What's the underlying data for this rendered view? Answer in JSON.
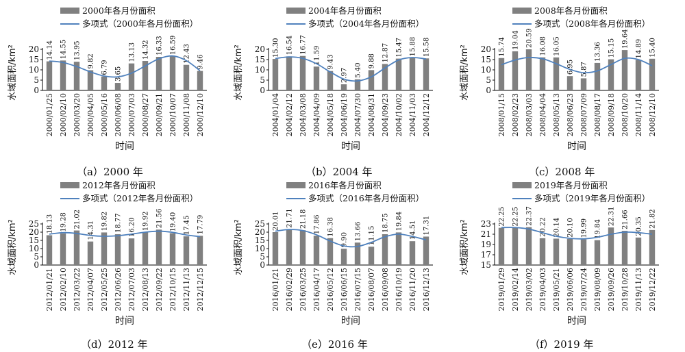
{
  "colors": {
    "bar": "#808080",
    "trend": "#4f81bd",
    "axis": "#000000",
    "text": "#111111"
  },
  "chart_data": [
    {
      "type": "bar",
      "caption": "（a）2000 年",
      "bar_legend": "2000年各月份面积",
      "trend_legend": "多项式（2000年各月份面积）",
      "xlabel": "时间",
      "ylabel": "水域面积/km²",
      "ylim": [
        0,
        20
      ],
      "yticks": [
        "0",
        "5",
        "10",
        "15",
        "20"
      ],
      "yticks_values": [
        0,
        5,
        10,
        15,
        20
      ],
      "categories": [
        "2000/01/25",
        "2000/02/10",
        "2000/03/20",
        "2000/04/05",
        "2000/05/16",
        "2000/06/08",
        "2000/07/03",
        "2000/08/27",
        "2000/09/21",
        "2000/10/07",
        "2000/11/08",
        "2000/12/10"
      ],
      "values": [
        14.14,
        14.55,
        13.95,
        9.82,
        6.79,
        3.65,
        13.13,
        14.32,
        16.33,
        16.59,
        12.43,
        9.46
      ],
      "value_labels": [
        "14.14",
        "14.55",
        "13.95",
        "9.82",
        "6.79",
        "3.65",
        "13.13",
        "14.32",
        "16.33",
        "16.59",
        "12.43",
        "9.46"
      ],
      "trend": [
        14.3,
        13.6,
        11.6,
        9.0,
        7.0,
        6.6,
        8.4,
        11.9,
        15.4,
        16.8,
        14.5,
        9.6
      ]
    },
    {
      "type": "bar",
      "caption": "（b）2004 年",
      "bar_legend": "2004年各月份面积",
      "trend_legend": "多项式（2004年各月份面积）",
      "xlabel": "时间",
      "ylabel": "水域面积/km²",
      "ylim": [
        0,
        20
      ],
      "yticks": [
        "0",
        "5",
        "10",
        "15",
        "20"
      ],
      "yticks_values": [
        0,
        5,
        10,
        15,
        20
      ],
      "categories": [
        "2004/01/04",
        "2004/02/12",
        "2004/03/08",
        "2004/04/09",
        "2004/05/18",
        "2004/06/19",
        "2004/07/30",
        "2004/08/31",
        "2004/09/23",
        "2004/10/02",
        "2004/11/03",
        "2004/12/12"
      ],
      "values": [
        15.3,
        16.54,
        16.77,
        11.59,
        9.43,
        2.97,
        5.4,
        9.88,
        12.87,
        15.47,
        15.88,
        15.58
      ],
      "value_labels": [
        "15.30",
        "16.54",
        "16.77",
        "11.59",
        "9.43",
        "2.97",
        "5.40",
        "9.88",
        "12.87",
        "15.47",
        "15.88",
        "15.58"
      ],
      "trend": [
        15.5,
        16.3,
        15.6,
        13.0,
        9.0,
        5.5,
        4.6,
        6.6,
        10.9,
        14.8,
        16.0,
        15.3
      ]
    },
    {
      "type": "bar",
      "caption": "（c）2008 年",
      "bar_legend": "2008年各月份面积",
      "trend_legend": "多项式（2008年各月份面积）",
      "xlabel": "时间",
      "ylabel": "水域面积/km²",
      "ylim": [
        0,
        20
      ],
      "yticks": [
        "0",
        "5",
        "10",
        "15",
        "20"
      ],
      "yticks_values": [
        0,
        5,
        10,
        15,
        20
      ],
      "categories": [
        "2008/01/15",
        "2008/02/23",
        "2008/03/03",
        "2008/04/04",
        "2008/05/13",
        "2008/06/23",
        "2008/07/09",
        "2008/08/17",
        "2008/09/18",
        "2008/10/20",
        "2008/11/14",
        "2008/12/10"
      ],
      "values": [
        15.74,
        19.04,
        20.59,
        16.08,
        16.05,
        6.95,
        5.87,
        13.36,
        15.15,
        19.64,
        14.89,
        15.4
      ],
      "value_labels": [
        "15.74",
        "19.04",
        "20.59",
        "16.08",
        "16.05",
        "6.95",
        "5.87",
        "13.36",
        "15.15",
        "19.64",
        "14.89",
        "15.40"
      ],
      "trend": [
        12.5,
        14.8,
        16.0,
        15.4,
        13.0,
        10.2,
        8.6,
        9.5,
        12.6,
        15.6,
        15.0,
        12.0
      ]
    },
    {
      "type": "bar",
      "caption": "（d）2012 年",
      "bar_legend": "2012年各月份面积",
      "trend_legend": "多项式（2012年各月份面积）",
      "xlabel": "时间",
      "ylabel": "水域面积/km²",
      "ylim": [
        0,
        25
      ],
      "yticks": [
        "0",
        "5",
        "10",
        "15",
        "20",
        "25"
      ],
      "yticks_values": [
        0,
        5,
        10,
        15,
        20,
        25
      ],
      "categories": [
        "2012/01/21",
        "2012/02/10",
        "2012/03/22",
        "2012/04/07",
        "2012/05/25",
        "2012/06/26",
        "2012/07/03",
        "2012/08/13",
        "2012/09/22",
        "2012/10/15",
        "2012/11/13",
        "2012/12/15"
      ],
      "values": [
        18.13,
        19.28,
        21.02,
        14.31,
        19.82,
        18.77,
        16.2,
        19.92,
        21.56,
        19.4,
        17.45,
        17.79
      ],
      "value_labels": [
        "18.13",
        "19.28",
        "21.02",
        "14.31",
        "19.82",
        "18.77",
        "16.20",
        "19.92",
        "21.56",
        "19.40",
        "17.45",
        "17.79"
      ],
      "trend": [
        18.8,
        19.7,
        19.2,
        18.0,
        17.5,
        17.8,
        18.8,
        20.0,
        20.6,
        19.9,
        18.3,
        17.3
      ]
    },
    {
      "type": "bar",
      "caption": "（e）2016 年",
      "bar_legend": "2016年各月份面积",
      "trend_legend": "多项式（2016年各月份面积）",
      "xlabel": "时间",
      "ylabel": "水域面积/km²",
      "ylim": [
        0,
        25
      ],
      "yticks": [
        "0",
        "5",
        "10",
        "15",
        "20",
        "25"
      ],
      "yticks_values": [
        0,
        5,
        10,
        15,
        20,
        25
      ],
      "categories": [
        "2016/01/21",
        "2016/02/29",
        "2016/03/25",
        "2016/04/17",
        "2016/05/12",
        "2016/06/15",
        "2016/07/15",
        "2016/08/07",
        "2016/09/08",
        "2016/10/19",
        "2016/11/20",
        "2016/12/13"
      ],
      "values": [
        20.01,
        21.71,
        21.18,
        17.86,
        16.38,
        9.9,
        13.66,
        11.15,
        18.75,
        19.84,
        14.51,
        17.31
      ],
      "value_labels": [
        "20.01",
        "21.71",
        "21.18",
        "17.86",
        "16.38",
        "9.90",
        "13.66",
        "11.15",
        "18.75",
        "19.84",
        "14.51",
        "17.31"
      ],
      "trend": [
        20.6,
        21.6,
        21.0,
        18.4,
        14.6,
        11.6,
        11.3,
        13.8,
        17.2,
        18.8,
        17.4,
        15.3
      ]
    },
    {
      "type": "bar",
      "caption": "（f）2019 年",
      "bar_legend": "2019年各月份面积",
      "trend_legend": "多项式（2019年各月份面积）",
      "xlabel": "时间",
      "ylabel": "水域面积/km²",
      "ylim": [
        15,
        23
      ],
      "yticks": [
        "15",
        "17",
        "19",
        "21",
        "23"
      ],
      "yticks_values": [
        15,
        17,
        19,
        21,
        23
      ],
      "categories": [
        "2019/01/29",
        "2019/02/14",
        "2019/03/02",
        "2019/04/03",
        "2019/05/21",
        "2019/06/06",
        "2019/07/24",
        "2019/08/09",
        "2019/09/26",
        "2019/10/28",
        "2019/11/13",
        "2019/12/22"
      ],
      "values": [
        22.25,
        22.25,
        22.37,
        20.22,
        20.14,
        20.1,
        19.99,
        19.84,
        22.31,
        21.66,
        20.35,
        21.82
      ],
      "value_labels": [
        "22.25",
        "22.25",
        "22.37",
        "20.22",
        "20.14",
        "20.10",
        "19.99",
        "19.84",
        "22.31",
        "21.66",
        "20.35",
        "21.82"
      ],
      "trend": [
        22.3,
        22.3,
        22.0,
        21.3,
        20.6,
        20.2,
        20.1,
        20.4,
        21.0,
        21.4,
        21.3,
        21.0
      ]
    }
  ]
}
